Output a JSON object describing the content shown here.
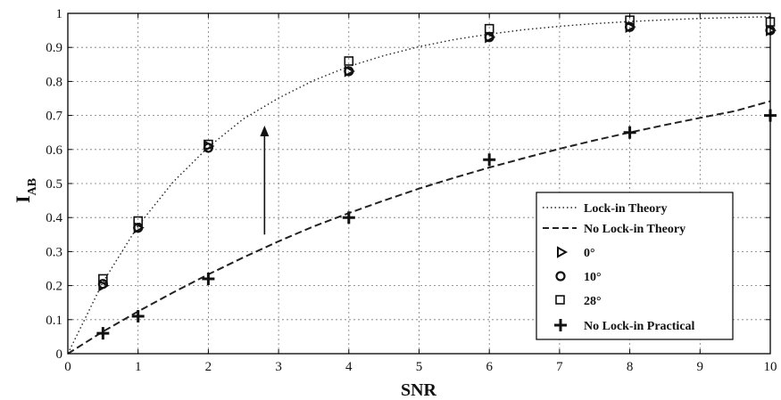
{
  "chart_data": {
    "type": "line",
    "xlabel": "SNR",
    "ylabel": "I",
    "ylabel_sub": "AB",
    "xlim": [
      0,
      10
    ],
    "ylim": [
      0,
      1
    ],
    "xticks": [
      "0",
      "1",
      "2",
      "3",
      "4",
      "5",
      "6",
      "7",
      "8",
      "9",
      "10"
    ],
    "yticks": [
      "0",
      "0.1",
      "0.2",
      "0.3",
      "0.4",
      "0.5",
      "0.6",
      "0.7",
      "0.8",
      "0.9",
      "1"
    ],
    "grid": true,
    "legend_position": "bottom-right",
    "series": [
      {
        "name": "Lock-in Theory",
        "style": "dotted-line",
        "x": [
          0,
          0.5,
          1,
          1.5,
          2,
          2.5,
          3,
          3.5,
          4,
          4.5,
          5,
          5.5,
          6,
          6.5,
          7,
          7.5,
          8,
          8.5,
          9,
          9.5,
          10
        ],
        "values": [
          0,
          0.21,
          0.376,
          0.505,
          0.607,
          0.69,
          0.751,
          0.803,
          0.844,
          0.876,
          0.902,
          0.923,
          0.939,
          0.952,
          0.962,
          0.97,
          0.976,
          0.981,
          0.985,
          0.988,
          0.99
        ]
      },
      {
        "name": "No Lock-in Theory",
        "style": "dashed-line",
        "x": [
          0,
          0.5,
          1,
          1.5,
          2,
          2.5,
          3,
          3.5,
          4,
          4.5,
          5,
          5.5,
          6,
          6.5,
          7,
          7.5,
          8,
          8.5,
          9,
          9.5,
          10
        ],
        "values": [
          0,
          0.065,
          0.124,
          0.18,
          0.233,
          0.283,
          0.33,
          0.374,
          0.413,
          0.45,
          0.485,
          0.517,
          0.547,
          0.575,
          0.602,
          0.627,
          0.65,
          0.672,
          0.693,
          0.713,
          0.742
        ]
      },
      {
        "name": "0°",
        "style": "triangle-right-marker",
        "x": [
          0.5,
          1,
          2,
          4,
          6,
          8,
          10
        ],
        "values": [
          0.2,
          0.37,
          0.61,
          0.83,
          0.93,
          0.96,
          0.95
        ]
      },
      {
        "name": "10°",
        "style": "circle-marker",
        "x": [
          0.5,
          1,
          2,
          4,
          6,
          8,
          10
        ],
        "values": [
          0.205,
          0.37,
          0.605,
          0.83,
          0.93,
          0.96,
          0.95
        ]
      },
      {
        "name": "28°",
        "style": "square-marker",
        "x": [
          0.5,
          1,
          2,
          4,
          6,
          8,
          10
        ],
        "values": [
          0.22,
          0.39,
          0.615,
          0.86,
          0.955,
          0.98,
          0.975
        ]
      },
      {
        "name": "No Lock-in Practical",
        "style": "plus-marker",
        "x": [
          0.5,
          1,
          2,
          4,
          6,
          8,
          10
        ],
        "values": [
          0.06,
          0.11,
          0.22,
          0.4,
          0.57,
          0.65,
          0.7
        ]
      }
    ],
    "annotation": {
      "type": "arrow",
      "from": [
        2.8,
        0.35
      ],
      "to": [
        2.8,
        0.67
      ]
    }
  }
}
